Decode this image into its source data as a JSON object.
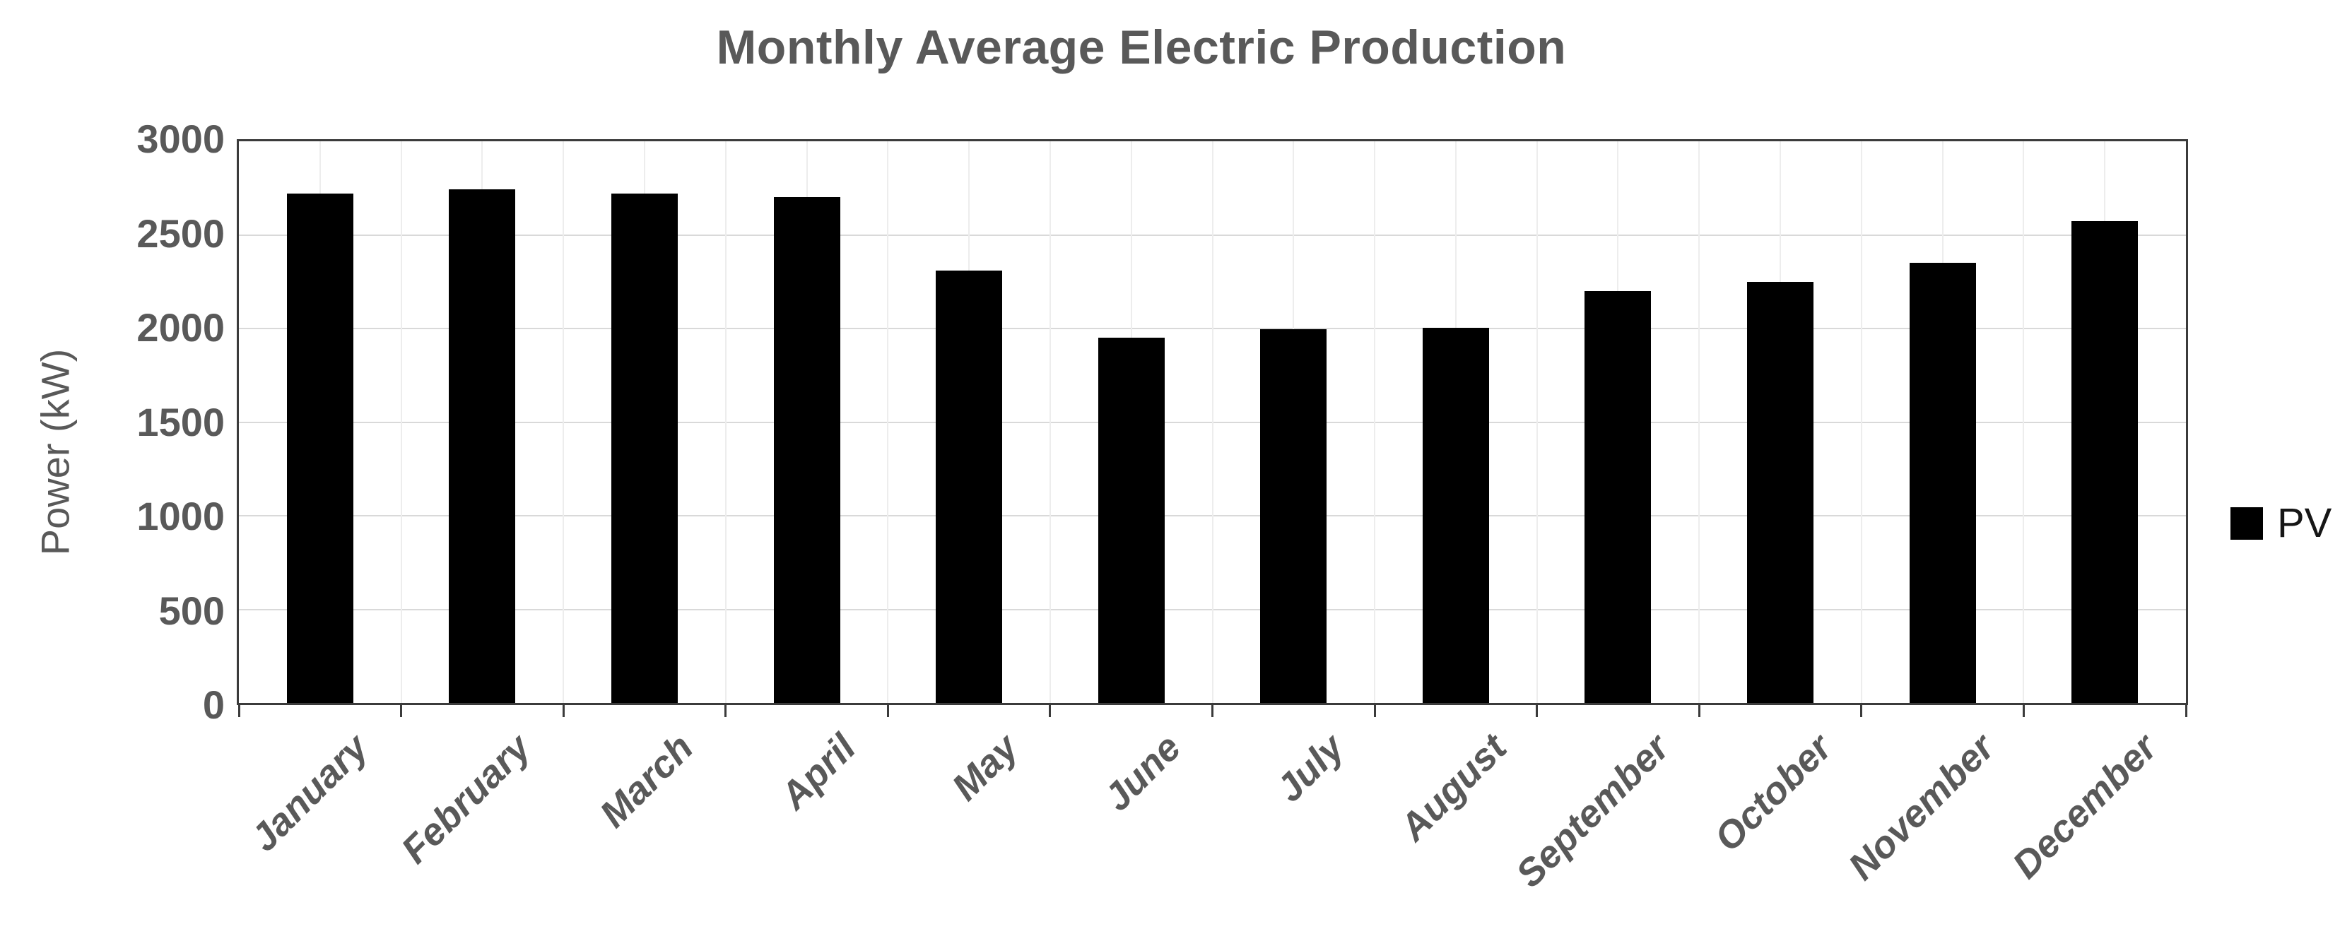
{
  "title": "Monthly Average Electric Production",
  "y_axis": {
    "label": "Power (kW)",
    "ticks": [
      0,
      500,
      1000,
      1500,
      2000,
      2500,
      3000
    ],
    "max": 3000
  },
  "legend": {
    "label": "PV",
    "swatch_color": "#000000"
  },
  "colors": {
    "title_text": "#595959",
    "axis_text": "#595959",
    "bar": "#000000",
    "plot_border": "#3b3b3b",
    "gridline_horizontal": "#d9d9d9",
    "gridline_vertical": "#ededed",
    "legend_text": "#161616"
  },
  "chart_data": {
    "type": "bar",
    "title": "Monthly Average Electric Production",
    "xlabel": "",
    "ylabel": "Power (kW)",
    "categories": [
      "January",
      "February",
      "March",
      "April",
      "May",
      "June",
      "July",
      "August",
      "September",
      "October",
      "November",
      "December"
    ],
    "series": [
      {
        "name": "PV",
        "color": "#000000",
        "values": [
          2720,
          2745,
          2720,
          2700,
          2310,
          1950,
          1995,
          2005,
          2200,
          2250,
          2350,
          2575
        ]
      }
    ],
    "ylim": [
      0,
      3000
    ],
    "ytick_step": 500,
    "grid": {
      "horizontal_major": true,
      "vertical_minor_half_slot": true
    },
    "legend_position": "middle-right",
    "bar_gap_ratio": 0.59
  }
}
